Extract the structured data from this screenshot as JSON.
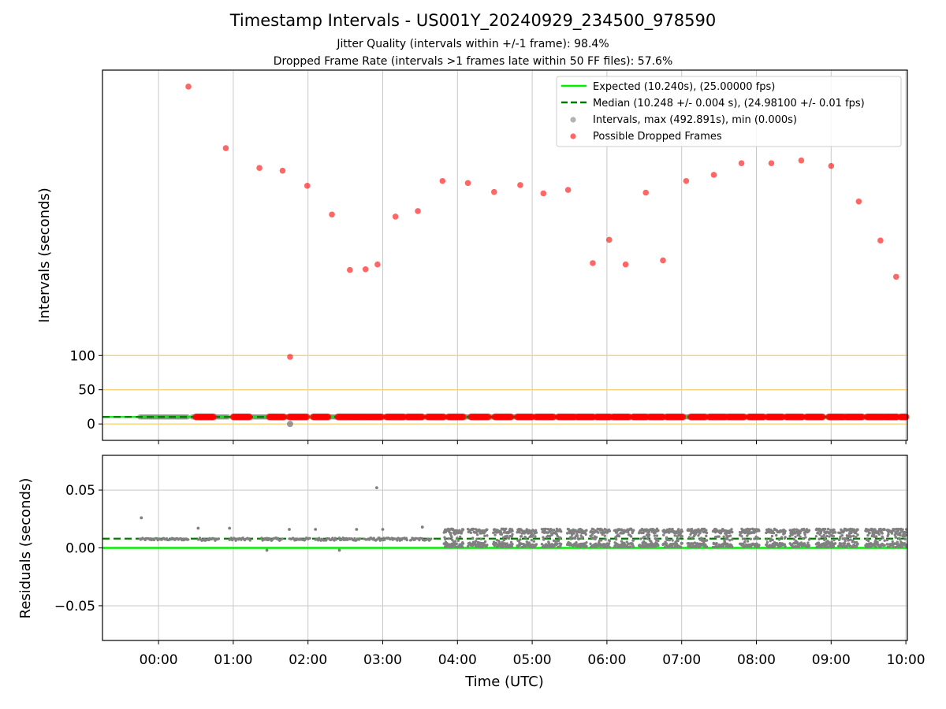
{
  "title": "Timestamp Intervals - US001Y_20240929_234500_978590",
  "subtitle_1": "Jitter Quality (intervals within +/-1 frame): 98.4%",
  "subtitle_2": "Dropped Frame Rate (intervals >1 frames late within 50 FF files): 57.6%",
  "colors": {
    "expected": "#00ee00",
    "median": "#007a00",
    "intervals": "#808080",
    "dropped": "#ff0000",
    "threshold": "#f8d37a",
    "grid": "#c8c8c8"
  },
  "chart_data": [
    {
      "type": "scatter",
      "name": "intervals-panel",
      "xlabel": "",
      "ylabel": "Intervals (seconds)",
      "x_unit": "hours (UTC)",
      "xlim": [
        -0.75,
        10.02
      ],
      "ylim": [
        -24,
        517
      ],
      "y_ticks": [
        0,
        50,
        100
      ],
      "y_tick_labels": [
        "0",
        "50",
        "100"
      ],
      "x_ticks": [
        0,
        1,
        2,
        3,
        4,
        5,
        6,
        7,
        8,
        9,
        10
      ],
      "grid": "vertical",
      "threshold_lines": [
        0,
        50,
        100
      ],
      "expected_line": 10.24,
      "median_line": 10.248,
      "legend_position": "top-right",
      "legend": [
        "Expected (10.240s), (25.00000 fps)",
        "Median (10.248 +/- 0.004 s), (24.98100 +/- 0.01 fps)",
        "Intervals, max (492.891s), min (0.000s)",
        "Possible Dropped Frames"
      ],
      "dropped_frames": {
        "x": [
          0.4,
          0.9,
          1.35,
          1.66,
          1.76,
          1.99,
          2.32,
          2.56,
          2.77,
          2.93,
          3.17,
          3.47,
          3.8,
          4.14,
          4.49,
          4.84,
          5.15,
          5.48,
          5.81,
          6.03,
          6.25,
          6.52,
          6.75,
          7.06,
          7.43,
          7.8,
          8.2,
          8.6,
          9.0,
          9.37,
          9.66,
          9.87
        ],
        "y": [
          492.9,
          403,
          374,
          370,
          98,
          348,
          306,
          225,
          226,
          233,
          303,
          311,
          355,
          352,
          339,
          349,
          337,
          342,
          235,
          269,
          233,
          338,
          239,
          355,
          364,
          381,
          381,
          385,
          377,
          325,
          268,
          215
        ]
      },
      "interval_clusters": {
        "x_ranges": [
          [
            -0.25,
            0.4
          ],
          [
            0.45,
            0.95
          ],
          [
            1.0,
            1.45
          ],
          [
            1.5,
            2.0
          ],
          [
            2.05,
            2.48
          ],
          [
            2.5,
            3.05
          ],
          [
            3.1,
            3.57
          ],
          [
            3.6,
            4.0
          ],
          [
            4.05,
            4.4
          ],
          [
            4.45,
            4.85
          ],
          [
            4.9,
            5.25
          ],
          [
            5.3,
            5.7
          ],
          [
            5.72,
            6.1
          ],
          [
            6.12,
            6.5
          ],
          [
            6.55,
            6.88
          ],
          [
            6.92,
            7.3
          ],
          [
            7.35,
            7.7
          ],
          [
            7.75,
            8.1
          ],
          [
            8.15,
            8.45
          ],
          [
            8.5,
            8.9
          ],
          [
            8.95,
            9.3
          ],
          [
            9.35,
            9.7
          ],
          [
            9.72,
            10.0
          ]
        ],
        "y": 10.24
      },
      "red_clusters": [
        [
          0.5,
          0.75
        ],
        [
          1.0,
          1.22
        ],
        [
          1.48,
          1.68
        ],
        [
          1.75,
          2.0
        ],
        [
          2.07,
          2.27
        ],
        [
          2.4,
          2.6
        ],
        [
          2.62,
          2.82
        ],
        [
          2.84,
          3.0
        ],
        [
          3.05,
          3.3
        ],
        [
          3.33,
          3.53
        ],
        [
          3.6,
          3.82
        ],
        [
          3.88,
          4.08
        ],
        [
          4.18,
          4.42
        ],
        [
          4.5,
          4.73
        ],
        [
          4.8,
          5.0
        ],
        [
          5.05,
          5.3
        ],
        [
          5.35,
          5.58
        ],
        [
          5.6,
          5.83
        ],
        [
          5.86,
          6.05
        ],
        [
          6.08,
          6.3
        ],
        [
          6.35,
          6.53
        ],
        [
          6.57,
          6.75
        ],
        [
          6.8,
          7.02
        ],
        [
          7.12,
          7.33
        ],
        [
          7.37,
          7.6
        ],
        [
          7.62,
          7.85
        ],
        [
          7.9,
          8.1
        ],
        [
          8.15,
          8.35
        ],
        [
          8.4,
          8.62
        ],
        [
          8.67,
          8.9
        ],
        [
          8.97,
          9.17
        ],
        [
          9.2,
          9.42
        ],
        [
          9.48,
          9.7
        ],
        [
          9.72,
          9.9
        ],
        [
          9.93,
          10.02
        ]
      ],
      "outliers": [
        {
          "x": 1.76,
          "y": 0.0
        }
      ]
    },
    {
      "type": "scatter",
      "name": "residuals-panel",
      "xlabel": "Time (UTC)",
      "ylabel": "Residuals (seconds)",
      "x_unit": "hours (UTC)",
      "xlim": [
        -0.75,
        10.02
      ],
      "ylim": [
        -0.08,
        0.08
      ],
      "y_ticks": [
        -0.05,
        0.0,
        0.05
      ],
      "y_tick_labels": [
        "−0.05",
        "0.00",
        "0.05"
      ],
      "x_ticks": [
        0,
        1,
        2,
        3,
        4,
        5,
        6,
        7,
        8,
        9,
        10
      ],
      "x_tick_labels": [
        "00:00",
        "01:00",
        "02:00",
        "03:00",
        "04:00",
        "05:00",
        "06:00",
        "07:00",
        "08:00",
        "09:00",
        "10:00"
      ],
      "grid": "both",
      "expected_line": 0.0,
      "median_line": 0.008,
      "cluster_starts": [
        0.53,
        0.95,
        1.38,
        1.75,
        2.1,
        2.42,
        2.75,
        3.05,
        3.37
      ],
      "dense_cluster_starts": [
        3.82,
        4.14,
        4.48,
        4.8,
        5.13,
        5.47,
        5.78,
        6.1,
        6.43,
        6.75,
        7.08,
        7.42,
        7.78,
        8.13,
        8.45,
        8.8,
        9.1,
        9.46,
        9.75
      ],
      "spikes": [
        {
          "x": -0.23,
          "y": 0.026
        },
        {
          "x": 2.92,
          "y": 0.052
        },
        {
          "x": 0.53,
          "y": 0.017
        },
        {
          "x": 0.95,
          "y": 0.017
        },
        {
          "x": 1.75,
          "y": 0.016
        },
        {
          "x": 2.1,
          "y": 0.016
        },
        {
          "x": 2.65,
          "y": 0.016
        },
        {
          "x": 3.0,
          "y": 0.016
        },
        {
          "x": 3.53,
          "y": 0.018
        },
        {
          "x": 1.45,
          "y": -0.002
        },
        {
          "x": 2.42,
          "y": -0.002
        }
      ]
    }
  ]
}
